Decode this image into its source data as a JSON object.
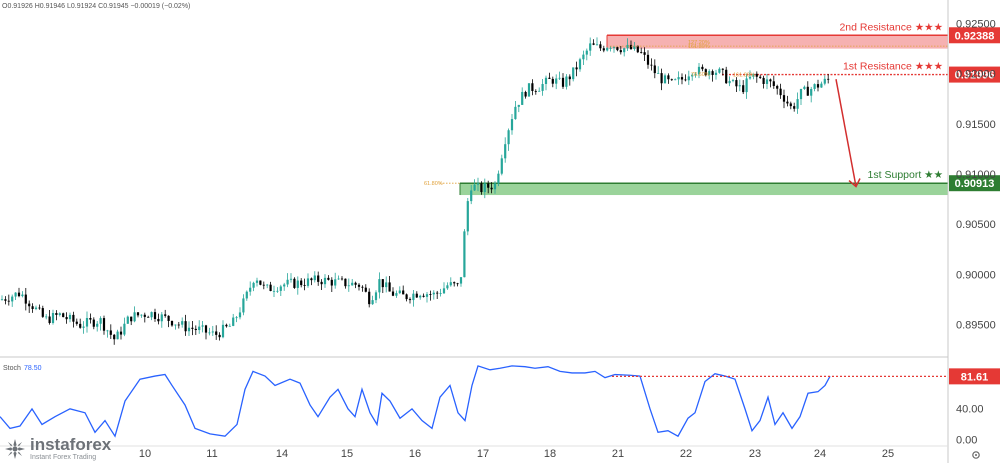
{
  "ohlc_header": "O0.91926 H0.91946 L0.91924 C0.91945 −0.00019 (−0.02%)",
  "brand": {
    "name": "instaforex",
    "tagline": "Instant Forex Trading"
  },
  "colors": {
    "up": "#26a69a",
    "down": "#000000",
    "resistance": "#e53935",
    "resistance_zone": "#f5a3a3",
    "support": "#2e7d32",
    "support_zone": "#8fce8f",
    "stoch_line": "#2962ff",
    "fib": "#e0a13a",
    "arrow": "#d32f2f"
  },
  "chart_data": [
    {
      "type": "candlestick",
      "title": "",
      "xlabel": "",
      "ylabel": "",
      "x_tick_labels": [
        "10",
        "11",
        "14",
        "15",
        "16",
        "17",
        "18",
        "21",
        "22",
        "23",
        "24",
        "25"
      ],
      "y_tick_labels": [
        "0.92500",
        "0.92000",
        "0.91500",
        "0.91000",
        "0.90500",
        "0.90000",
        "0.89500"
      ],
      "ylim": [
        0.8925,
        0.9262
      ],
      "grid": false,
      "close_path": [
        [
          0,
          0.8975
        ],
        [
          20,
          0.8982
        ],
        [
          32,
          0.897
        ],
        [
          45,
          0.8955
        ],
        [
          60,
          0.896
        ],
        [
          80,
          0.895
        ],
        [
          100,
          0.8955
        ],
        [
          115,
          0.8935
        ],
        [
          130,
          0.8958
        ],
        [
          150,
          0.8962
        ],
        [
          170,
          0.8955
        ],
        [
          185,
          0.8948
        ],
        [
          200,
          0.8945
        ],
        [
          215,
          0.894
        ],
        [
          232,
          0.895
        ],
        [
          245,
          0.8975
        ],
        [
          255,
          0.9
        ],
        [
          265,
          0.8985
        ],
        [
          280,
          0.899
        ],
        [
          300,
          0.8992
        ],
        [
          320,
          0.8995
        ],
        [
          340,
          0.8992
        ],
        [
          360,
          0.899
        ],
        [
          370,
          0.8975
        ],
        [
          380,
          0.8995
        ],
        [
          390,
          0.8982
        ],
        [
          405,
          0.8978
        ],
        [
          420,
          0.8983
        ],
        [
          435,
          0.898
        ],
        [
          448,
          0.899
        ],
        [
          460,
          0.8988
        ],
        [
          466,
          0.906
        ],
        [
          470,
          0.909
        ],
        [
          480,
          0.9085
        ],
        [
          495,
          0.909
        ],
        [
          505,
          0.9135
        ],
        [
          515,
          0.9168
        ],
        [
          527,
          0.9185
        ],
        [
          540,
          0.9188
        ],
        [
          552,
          0.9195
        ],
        [
          562,
          0.919
        ],
        [
          572,
          0.92
        ],
        [
          582,
          0.9215
        ],
        [
          590,
          0.9228
        ],
        [
          600,
          0.9226
        ],
        [
          610,
          0.923
        ],
        [
          622,
          0.9226
        ],
        [
          632,
          0.9225
        ],
        [
          642,
          0.922
        ],
        [
          652,
          0.9205
        ],
        [
          662,
          0.9195
        ],
        [
          672,
          0.919
        ],
        [
          682,
          0.9195
        ],
        [
          692,
          0.9205
        ],
        [
          702,
          0.9202
        ],
        [
          712,
          0.9205
        ],
        [
          722,
          0.92
        ],
        [
          732,
          0.919
        ],
        [
          742,
          0.9185
        ],
        [
          752,
          0.9198
        ],
        [
          762,
          0.9195
        ],
        [
          772,
          0.919
        ],
        [
          782,
          0.918
        ],
        [
          792,
          0.9165
        ],
        [
          800,
          0.918
        ],
        [
          810,
          0.9185
        ],
        [
          820,
          0.919
        ],
        [
          830,
          0.9195
        ]
      ],
      "levels": [
        {
          "label": "2nd Resistance ★★★",
          "value": "0.92388",
          "level": 0.92388,
          "zone": [
            0.92255,
            0.92388
          ],
          "kind": "resistance"
        },
        {
          "label": "1st Resistance ★★★",
          "value": "0.91996",
          "level": 0.91996,
          "kind": "resistance"
        },
        {
          "label": "1st Support ★★",
          "value": "0.90913",
          "level": 0.90913,
          "zone": [
            0.90795,
            0.90913
          ],
          "kind": "support"
        }
      ],
      "fib_labels": [
        {
          "text": "61.80%",
          "level": 0.90913
        },
        {
          "text": "127.20%",
          "level": 0.9232
        },
        {
          "text": "161.80%",
          "level": 0.9228
        },
        {
          "text": "78.60%",
          "level": 0.92
        },
        {
          "text": "161.80%",
          "level": 0.91996
        }
      ],
      "projection_arrow": {
        "from": 0.9195,
        "to": 0.9088
      }
    },
    {
      "type": "line",
      "title": "Stoch",
      "title_value": "78.50",
      "y_tick_labels": [
        "40.00",
        "0.00"
      ],
      "ylim": [
        -5,
        100
      ],
      "current_label": "81.61",
      "current_value": 81.61,
      "series": [
        {
          "values": [
            [
              0,
              30
            ],
            [
              10,
              15
            ],
            [
              20,
              18
            ],
            [
              32,
              40
            ],
            [
              42,
              20
            ],
            [
              55,
              30
            ],
            [
              70,
              40
            ],
            [
              85,
              35
            ],
            [
              95,
              10
            ],
            [
              105,
              25
            ],
            [
              115,
              5
            ],
            [
              125,
              50
            ],
            [
              140,
              78
            ],
            [
              155,
              82
            ],
            [
              165,
              84
            ],
            [
              172,
              70
            ],
            [
              185,
              45
            ],
            [
              195,
              15
            ],
            [
              210,
              8
            ],
            [
              225,
              5
            ],
            [
              237,
              20
            ],
            [
              245,
              65
            ],
            [
              253,
              88
            ],
            [
              265,
              82
            ],
            [
              275,
              70
            ],
            [
              290,
              78
            ],
            [
              300,
              73
            ],
            [
              310,
              45
            ],
            [
              318,
              30
            ],
            [
              330,
              55
            ],
            [
              338,
              65
            ],
            [
              348,
              40
            ],
            [
              355,
              30
            ],
            [
              362,
              65
            ],
            [
              370,
              35
            ],
            [
              377,
              20
            ],
            [
              382,
              60
            ],
            [
              390,
              50
            ],
            [
              400,
              28
            ],
            [
              412,
              40
            ],
            [
              422,
              25
            ],
            [
              432,
              15
            ],
            [
              440,
              55
            ],
            [
              450,
              70
            ],
            [
              458,
              35
            ],
            [
              465,
              25
            ],
            [
              472,
              70
            ],
            [
              478,
              95
            ],
            [
              490,
              90
            ],
            [
              500,
              92
            ],
            [
              512,
              95
            ],
            [
              525,
              94
            ],
            [
              535,
              92
            ],
            [
              548,
              94
            ],
            [
              560,
              88
            ],
            [
              572,
              86
            ],
            [
              585,
              86
            ],
            [
              595,
              88
            ],
            [
              605,
              80
            ],
            [
              615,
              84
            ],
            [
              630,
              83
            ],
            [
              640,
              82
            ],
            [
              650,
              40
            ],
            [
              658,
              10
            ],
            [
              668,
              12
            ],
            [
              678,
              5
            ],
            [
              688,
              28
            ],
            [
              695,
              35
            ],
            [
              705,
              75
            ],
            [
              715,
              85
            ],
            [
              725,
              82
            ],
            [
              735,
              78
            ],
            [
              745,
              40
            ],
            [
              752,
              12
            ],
            [
              760,
              25
            ],
            [
              768,
              55
            ],
            [
              775,
              20
            ],
            [
              783,
              35
            ],
            [
              792,
              15
            ],
            [
              800,
              30
            ],
            [
              808,
              60
            ],
            [
              818,
              62
            ],
            [
              825,
              70
            ],
            [
              830,
              81.6
            ]
          ]
        }
      ]
    }
  ]
}
